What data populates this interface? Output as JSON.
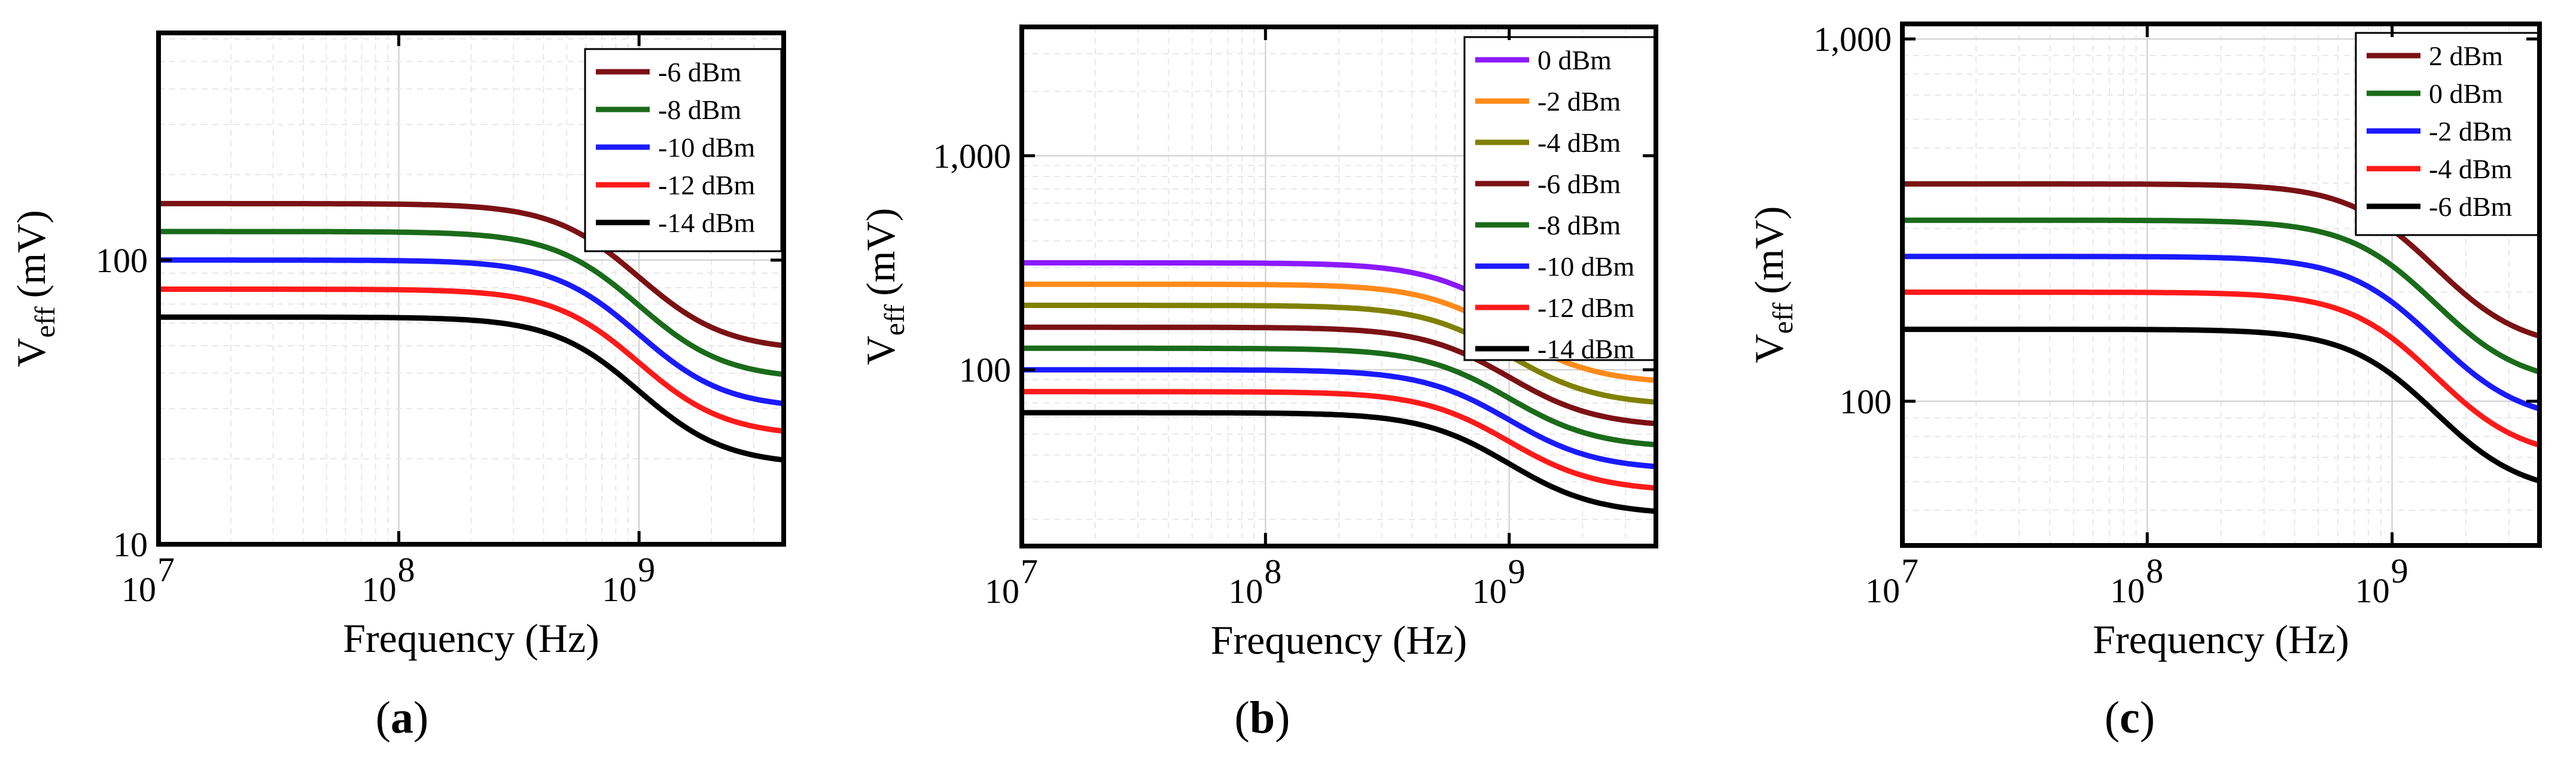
{
  "chart_data": [
    {
      "type": "line",
      "panel_label": "a",
      "xlabel": "Frequency (Hz)",
      "ylabel_main": "V",
      "ylabel_sub": "eff",
      "ylabel_unit": "(mV)",
      "xscale": "log",
      "yscale": "log",
      "xlim": [
        10000000,
        4000000000
      ],
      "ylim": [
        10,
        630
      ],
      "xticks": [
        {
          "value": 10000000,
          "base": "10",
          "exp": "7"
        },
        {
          "value": 100000000,
          "base": "10",
          "exp": "8"
        },
        {
          "value": 1000000000,
          "base": "10",
          "exp": "9"
        }
      ],
      "yticks": [
        {
          "value": 10,
          "label": "10"
        },
        {
          "value": 100,
          "label": "100"
        }
      ],
      "legend_position": "top-right",
      "series": [
        {
          "name": "-6 dBm",
          "color": "#7b1114",
          "low_freq_value": 158,
          "high_freq_value": 48
        },
        {
          "name": "-8 dBm",
          "color": "#1a6b1a",
          "low_freq_value": 126,
          "high_freq_value": 38
        },
        {
          "name": "-10 dBm",
          "color": "#1a1aff",
          "low_freq_value": 100,
          "high_freq_value": 30
        },
        {
          "name": "-12 dBm",
          "color": "#ff1a1a",
          "low_freq_value": 79,
          "high_freq_value": 24
        },
        {
          "name": "-14 dBm",
          "color": "#000000",
          "low_freq_value": 63,
          "high_freq_value": 19
        }
      ],
      "rolloff_corner_hz": 1000000000
    },
    {
      "type": "line",
      "panel_label": "b",
      "xlabel": "Frequency (Hz)",
      "ylabel_main": "V",
      "ylabel_sub": "eff",
      "ylabel_unit": "(mV)",
      "xscale": "log",
      "yscale": "log",
      "xlim": [
        10000000,
        4000000000
      ],
      "ylim": [
        15,
        4000
      ],
      "xticks": [
        {
          "value": 10000000,
          "base": "10",
          "exp": "7"
        },
        {
          "value": 100000000,
          "base": "10",
          "exp": "8"
        },
        {
          "value": 1000000000,
          "base": "10",
          "exp": "9"
        }
      ],
      "yticks": [
        {
          "value": 100,
          "label": "100"
        },
        {
          "value": 1000,
          "label": "1,000"
        }
      ],
      "legend_position": "top-right",
      "series": [
        {
          "name": "0 dBm",
          "color": "#8a1aff",
          "low_freq_value": 316,
          "high_freq_value": 110
        },
        {
          "name": "-2 dBm",
          "color": "#ff8a1a",
          "low_freq_value": 251,
          "high_freq_value": 86
        },
        {
          "name": "-4 dBm",
          "color": "#808000",
          "low_freq_value": 200,
          "high_freq_value": 68
        },
        {
          "name": "-6 dBm",
          "color": "#7b1114",
          "low_freq_value": 158,
          "high_freq_value": 54
        },
        {
          "name": "-8 dBm",
          "color": "#1a6b1a",
          "low_freq_value": 126,
          "high_freq_value": 43
        },
        {
          "name": "-10 dBm",
          "color": "#1a1aff",
          "low_freq_value": 100,
          "high_freq_value": 34
        },
        {
          "name": "-12 dBm",
          "color": "#ff1a1a",
          "low_freq_value": 79,
          "high_freq_value": 27
        },
        {
          "name": "-14 dBm",
          "color": "#000000",
          "low_freq_value": 63,
          "high_freq_value": 21
        }
      ],
      "rolloff_corner_hz": 1000000000
    },
    {
      "type": "line",
      "panel_label": "c",
      "xlabel": "Frequency (Hz)",
      "ylabel_main": "V",
      "ylabel_sub": "eff",
      "ylabel_unit": "(mV)",
      "xscale": "log",
      "yscale": "log",
      "xlim": [
        10000000,
        4000000000
      ],
      "ylim": [
        40,
        1100
      ],
      "xticks": [
        {
          "value": 10000000,
          "base": "10",
          "exp": "7"
        },
        {
          "value": 100000000,
          "base": "10",
          "exp": "8"
        },
        {
          "value": 1000000000,
          "base": "10",
          "exp": "9"
        }
      ],
      "yticks": [
        {
          "value": 100,
          "label": "100"
        },
        {
          "value": 1000,
          "label": "1,000"
        }
      ],
      "legend_position": "top-right",
      "series": [
        {
          "name": "2 dBm",
          "color": "#7b1114",
          "low_freq_value": 398,
          "high_freq_value": 138
        },
        {
          "name": "0 dBm",
          "color": "#1a6b1a",
          "low_freq_value": 316,
          "high_freq_value": 110
        },
        {
          "name": "-2 dBm",
          "color": "#1a1aff",
          "low_freq_value": 251,
          "high_freq_value": 87
        },
        {
          "name": "-4 dBm",
          "color": "#ff1a1a",
          "low_freq_value": 200,
          "high_freq_value": 69
        },
        {
          "name": "-6 dBm",
          "color": "#000000",
          "low_freq_value": 158,
          "high_freq_value": 55
        }
      ],
      "rolloff_corner_hz": 1500000000
    }
  ]
}
